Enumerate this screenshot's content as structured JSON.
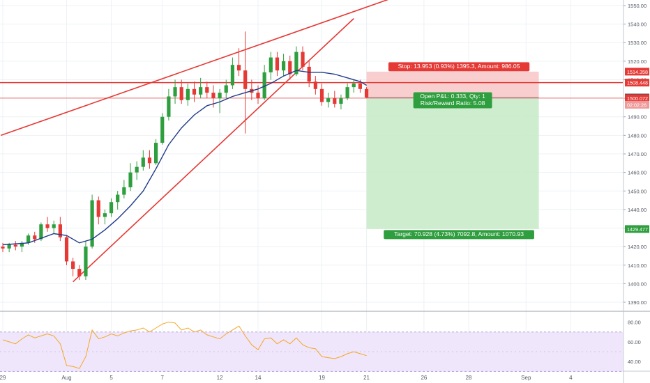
{
  "chart_data": {
    "type": "candlestick",
    "x_labels": [
      {
        "label": "29",
        "bar": 0
      },
      {
        "label": "Aug",
        "bar": 10
      },
      {
        "label": "5",
        "bar": 17
      },
      {
        "label": "7",
        "bar": 25
      },
      {
        "label": "12",
        "bar": 34
      },
      {
        "label": "14",
        "bar": 40
      },
      {
        "label": "19",
        "bar": 50
      },
      {
        "label": "21",
        "bar": 57
      },
      {
        "label": "26",
        "bar": 66
      },
      {
        "label": "28",
        "bar": 73
      },
      {
        "label": "Sep",
        "bar": 82
      },
      {
        "label": "4",
        "bar": 89
      }
    ],
    "price_axis": {
      "ylim": [
        1385.5,
        1553
      ],
      "ticks": [
        1390,
        1400,
        1410,
        1420,
        1430,
        1440,
        1450,
        1460,
        1470,
        1480,
        1490,
        1500,
        1510,
        1520,
        1530,
        1540,
        1550
      ],
      "tick_labels": [
        "1390.00",
        "1400.00",
        "1410.00",
        "1420.00",
        "1430.00",
        "1440.00",
        "1450.00",
        "1460.00",
        "1470.00",
        "1480.00",
        "1490.00",
        "1500.00",
        "1510.00",
        "1520.00",
        "1530.00",
        "1540.00",
        "1550.00"
      ]
    },
    "candles": [
      {
        "bar": 0,
        "o": 1420,
        "h": 1422,
        "l": 1417,
        "c": 1419
      },
      {
        "bar": 1,
        "o": 1419,
        "h": 1422,
        "l": 1417,
        "c": 1421
      },
      {
        "bar": 2,
        "o": 1421,
        "h": 1423,
        "l": 1418,
        "c": 1420
      },
      {
        "bar": 3,
        "o": 1420,
        "h": 1423,
        "l": 1417,
        "c": 1422
      },
      {
        "bar": 4,
        "o": 1422,
        "h": 1427,
        "l": 1421,
        "c": 1426
      },
      {
        "bar": 5,
        "o": 1426,
        "h": 1428,
        "l": 1422,
        "c": 1424
      },
      {
        "bar": 6,
        "o": 1424,
        "h": 1433,
        "l": 1423,
        "c": 1432
      },
      {
        "bar": 7,
        "o": 1432,
        "h": 1436,
        "l": 1428,
        "c": 1430
      },
      {
        "bar": 8,
        "o": 1430,
        "h": 1434,
        "l": 1427,
        "c": 1432
      },
      {
        "bar": 9,
        "o": 1432,
        "h": 1436,
        "l": 1423,
        "c": 1425
      },
      {
        "bar": 10,
        "o": 1425,
        "h": 1426,
        "l": 1410,
        "c": 1412
      },
      {
        "bar": 11,
        "o": 1412,
        "h": 1414,
        "l": 1404,
        "c": 1408
      },
      {
        "bar": 12,
        "o": 1408,
        "h": 1410,
        "l": 1402,
        "c": 1404
      },
      {
        "bar": 13,
        "o": 1404,
        "h": 1423,
        "l": 1402,
        "c": 1420
      },
      {
        "bar": 14,
        "o": 1420,
        "h": 1448,
        "l": 1419,
        "c": 1445
      },
      {
        "bar": 15,
        "o": 1445,
        "h": 1447,
        "l": 1432,
        "c": 1436
      },
      {
        "bar": 16,
        "o": 1436,
        "h": 1440,
        "l": 1432,
        "c": 1438
      },
      {
        "bar": 17,
        "o": 1438,
        "h": 1446,
        "l": 1436,
        "c": 1444
      },
      {
        "bar": 18,
        "o": 1444,
        "h": 1450,
        "l": 1440,
        "c": 1448
      },
      {
        "bar": 19,
        "o": 1448,
        "h": 1456,
        "l": 1446,
        "c": 1452
      },
      {
        "bar": 20,
        "o": 1452,
        "h": 1465,
        "l": 1450,
        "c": 1460
      },
      {
        "bar": 21,
        "o": 1460,
        "h": 1466,
        "l": 1456,
        "c": 1463
      },
      {
        "bar": 22,
        "o": 1463,
        "h": 1472,
        "l": 1461,
        "c": 1468
      },
      {
        "bar": 23,
        "o": 1468,
        "h": 1472,
        "l": 1462,
        "c": 1465
      },
      {
        "bar": 24,
        "o": 1465,
        "h": 1478,
        "l": 1464,
        "c": 1476
      },
      {
        "bar": 25,
        "o": 1476,
        "h": 1492,
        "l": 1475,
        "c": 1490
      },
      {
        "bar": 26,
        "o": 1490,
        "h": 1505,
        "l": 1488,
        "c": 1501
      },
      {
        "bar": 27,
        "o": 1501,
        "h": 1510,
        "l": 1497,
        "c": 1506
      },
      {
        "bar": 28,
        "o": 1506,
        "h": 1510,
        "l": 1497,
        "c": 1499
      },
      {
        "bar": 29,
        "o": 1499,
        "h": 1508,
        "l": 1496,
        "c": 1505
      },
      {
        "bar": 30,
        "o": 1505,
        "h": 1509,
        "l": 1498,
        "c": 1502
      },
      {
        "bar": 31,
        "o": 1502,
        "h": 1511,
        "l": 1500,
        "c": 1506
      },
      {
        "bar": 32,
        "o": 1506,
        "h": 1509,
        "l": 1500,
        "c": 1503
      },
      {
        "bar": 33,
        "o": 1503,
        "h": 1507,
        "l": 1495,
        "c": 1500
      },
      {
        "bar": 34,
        "o": 1500,
        "h": 1505,
        "l": 1492,
        "c": 1503
      },
      {
        "bar": 35,
        "o": 1503,
        "h": 1510,
        "l": 1500,
        "c": 1507
      },
      {
        "bar": 36,
        "o": 1507,
        "h": 1522,
        "l": 1505,
        "c": 1518
      },
      {
        "bar": 37,
        "o": 1518,
        "h": 1527,
        "l": 1512,
        "c": 1515
      },
      {
        "bar": 38,
        "o": 1515,
        "h": 1536,
        "l": 1481,
        "c": 1505
      },
      {
        "bar": 39,
        "o": 1505,
        "h": 1510,
        "l": 1499,
        "c": 1503
      },
      {
        "bar": 40,
        "o": 1503,
        "h": 1507,
        "l": 1497,
        "c": 1500
      },
      {
        "bar": 41,
        "o": 1500,
        "h": 1518,
        "l": 1499,
        "c": 1514
      },
      {
        "bar": 42,
        "o": 1514,
        "h": 1525,
        "l": 1510,
        "c": 1522
      },
      {
        "bar": 43,
        "o": 1522,
        "h": 1525,
        "l": 1512,
        "c": 1515
      },
      {
        "bar": 44,
        "o": 1515,
        "h": 1524,
        "l": 1512,
        "c": 1520
      },
      {
        "bar": 45,
        "o": 1520,
        "h": 1523,
        "l": 1510,
        "c": 1513
      },
      {
        "bar": 46,
        "o": 1513,
        "h": 1528,
        "l": 1512,
        "c": 1525
      },
      {
        "bar": 47,
        "o": 1525,
        "h": 1528,
        "l": 1515,
        "c": 1517
      },
      {
        "bar": 48,
        "o": 1517,
        "h": 1520,
        "l": 1506,
        "c": 1509
      },
      {
        "bar": 49,
        "o": 1509,
        "h": 1512,
        "l": 1502,
        "c": 1505
      },
      {
        "bar": 50,
        "o": 1505,
        "h": 1508,
        "l": 1496,
        "c": 1498
      },
      {
        "bar": 51,
        "o": 1498,
        "h": 1503,
        "l": 1495,
        "c": 1500
      },
      {
        "bar": 52,
        "o": 1500,
        "h": 1504,
        "l": 1495,
        "c": 1497
      },
      {
        "bar": 53,
        "o": 1497,
        "h": 1502,
        "l": 1494,
        "c": 1500
      },
      {
        "bar": 54,
        "o": 1500,
        "h": 1508,
        "l": 1499,
        "c": 1506
      },
      {
        "bar": 55,
        "o": 1506,
        "h": 1510,
        "l": 1503,
        "c": 1508
      },
      {
        "bar": 56,
        "o": 1508,
        "h": 1510,
        "l": 1503,
        "c": 1505
      },
      {
        "bar": 57,
        "o": 1505,
        "h": 1506,
        "l": 1500,
        "c": 1500.4
      }
    ],
    "moving_average": {
      "color": "#1e3a8a",
      "points": [
        {
          "bar": 0,
          "v": 1421
        },
        {
          "bar": 4,
          "v": 1422
        },
        {
          "bar": 8,
          "v": 1427
        },
        {
          "bar": 10,
          "v": 1426
        },
        {
          "bar": 12,
          "v": 1422
        },
        {
          "bar": 14,
          "v": 1424
        },
        {
          "bar": 16,
          "v": 1429
        },
        {
          "bar": 18,
          "v": 1435
        },
        {
          "bar": 20,
          "v": 1442
        },
        {
          "bar": 22,
          "v": 1450
        },
        {
          "bar": 24,
          "v": 1462
        },
        {
          "bar": 26,
          "v": 1475
        },
        {
          "bar": 28,
          "v": 1484
        },
        {
          "bar": 30,
          "v": 1491
        },
        {
          "bar": 32,
          "v": 1496
        },
        {
          "bar": 34,
          "v": 1498
        },
        {
          "bar": 36,
          "v": 1501
        },
        {
          "bar": 38,
          "v": 1503
        },
        {
          "bar": 40,
          "v": 1505
        },
        {
          "bar": 42,
          "v": 1508
        },
        {
          "bar": 44,
          "v": 1512
        },
        {
          "bar": 46,
          "v": 1515
        },
        {
          "bar": 48,
          "v": 1514
        },
        {
          "bar": 50,
          "v": 1514
        },
        {
          "bar": 52,
          "v": 1513
        },
        {
          "bar": 54,
          "v": 1511
        },
        {
          "bar": 56,
          "v": 1509
        },
        {
          "bar": 57,
          "v": 1507
        }
      ]
    },
    "trendlines": [
      {
        "name": "upper-channel",
        "from": {
          "bar": -0.3,
          "v": 1480
        },
        "to": {
          "bar": 61,
          "v": 1554
        },
        "color": "#e53935"
      },
      {
        "name": "lower-channel",
        "from": {
          "bar": 11,
          "v": 1401
        },
        "to": {
          "bar": 55,
          "v": 1543
        },
        "color": "#e53935"
      }
    ],
    "horizontal_levels": [
      {
        "name": "resistance",
        "value": 1508.448,
        "color": "#e53935"
      },
      {
        "name": "entry",
        "value": 1500.072,
        "color": "#e57373"
      }
    ],
    "position": {
      "side": "short",
      "from_bar": 57,
      "to_bar": 84,
      "entry": 1500.405,
      "stop": 1514.358,
      "target": 1429.477,
      "stop_label": "Stop: 13.953 (0.93%) 1395.3, Amount: 986.05",
      "target_label": "Target: 70.928 (4.73%) 7092.8, Amount: 1070.93",
      "pnl_label": "Open P&L: 0.333, Qty: 1",
      "rr_label": "Risk/Reward Ratio: 5.08"
    },
    "price_tags": [
      {
        "label": "1514.358",
        "value": 1514.358,
        "bg": "#e53935",
        "fg": "#ffffff"
      },
      {
        "label": "1508.448",
        "value": 1508.448,
        "bg": "#e53935",
        "fg": "#ffffff"
      },
      {
        "label": "1500.405",
        "value": 1500.405,
        "bg": "#37474f",
        "fg": "#ffffff"
      },
      {
        "label": "1500.072",
        "value": 1500.072,
        "bg": "#e53935",
        "fg": "#ffffff"
      },
      {
        "label": "02:02:26",
        "value": 1496.5,
        "bg": "#ef9a9a",
        "fg": "#ffffff"
      },
      {
        "label": "1429.477",
        "value": 1429.477,
        "bg": "#2e9e3e",
        "fg": "#ffffff"
      }
    ],
    "rsi": {
      "ylim": [
        31,
        86
      ],
      "ticks": [
        40,
        60,
        80
      ],
      "tick_labels": [
        "40.00",
        "60.00",
        "80.00"
      ],
      "band": [
        30,
        70
      ],
      "color": "#f5a623",
      "points": [
        {
          "bar": 0,
          "v": 62
        },
        {
          "bar": 1,
          "v": 60
        },
        {
          "bar": 2,
          "v": 58
        },
        {
          "bar": 3,
          "v": 63
        },
        {
          "bar": 4,
          "v": 67
        },
        {
          "bar": 5,
          "v": 64
        },
        {
          "bar": 6,
          "v": 66
        },
        {
          "bar": 7,
          "v": 68
        },
        {
          "bar": 8,
          "v": 66
        },
        {
          "bar": 9,
          "v": 58
        },
        {
          "bar": 10,
          "v": 36
        },
        {
          "bar": 11,
          "v": 35
        },
        {
          "bar": 12,
          "v": 33
        },
        {
          "bar": 13,
          "v": 45
        },
        {
          "bar": 14,
          "v": 72
        },
        {
          "bar": 15,
          "v": 63
        },
        {
          "bar": 16,
          "v": 65
        },
        {
          "bar": 17,
          "v": 68
        },
        {
          "bar": 18,
          "v": 66
        },
        {
          "bar": 19,
          "v": 69
        },
        {
          "bar": 20,
          "v": 71
        },
        {
          "bar": 21,
          "v": 72
        },
        {
          "bar": 22,
          "v": 74
        },
        {
          "bar": 23,
          "v": 70
        },
        {
          "bar": 24,
          "v": 74
        },
        {
          "bar": 25,
          "v": 78
        },
        {
          "bar": 26,
          "v": 80
        },
        {
          "bar": 27,
          "v": 79
        },
        {
          "bar": 28,
          "v": 72
        },
        {
          "bar": 29,
          "v": 74
        },
        {
          "bar": 30,
          "v": 70
        },
        {
          "bar": 31,
          "v": 72
        },
        {
          "bar": 32,
          "v": 67
        },
        {
          "bar": 33,
          "v": 65
        },
        {
          "bar": 34,
          "v": 63
        },
        {
          "bar": 35,
          "v": 68
        },
        {
          "bar": 36,
          "v": 72
        },
        {
          "bar": 37,
          "v": 76
        },
        {
          "bar": 38,
          "v": 66
        },
        {
          "bar": 39,
          "v": 57
        },
        {
          "bar": 40,
          "v": 52
        },
        {
          "bar": 41,
          "v": 63
        },
        {
          "bar": 42,
          "v": 64
        },
        {
          "bar": 43,
          "v": 58
        },
        {
          "bar": 44,
          "v": 62
        },
        {
          "bar": 45,
          "v": 58
        },
        {
          "bar": 46,
          "v": 64
        },
        {
          "bar": 47,
          "v": 57
        },
        {
          "bar": 48,
          "v": 54
        },
        {
          "bar": 49,
          "v": 53
        },
        {
          "bar": 50,
          "v": 45
        },
        {
          "bar": 51,
          "v": 44
        },
        {
          "bar": 52,
          "v": 43
        },
        {
          "bar": 53,
          "v": 45
        },
        {
          "bar": 54,
          "v": 48
        },
        {
          "bar": 55,
          "v": 50
        },
        {
          "bar": 56,
          "v": 48
        },
        {
          "bar": 57,
          "v": 46
        }
      ]
    },
    "colors": {
      "up": "#2e9e3e",
      "down": "#e53935",
      "grid": "#eef1f4",
      "axis_text": "#555b66",
      "stop_zone": "#f8c9c9",
      "target_zone": "#c9ebc9",
      "rsi_bg": "#efe6fb"
    }
  }
}
